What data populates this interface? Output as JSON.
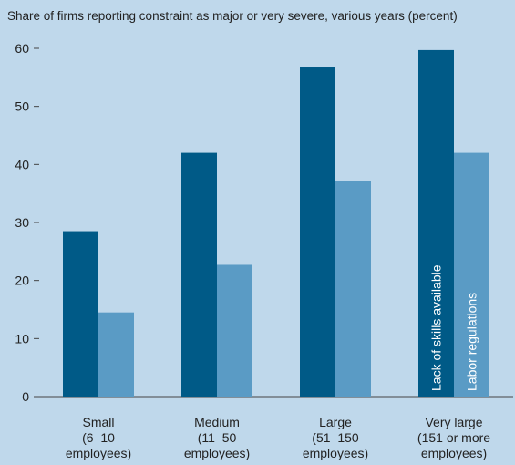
{
  "chart_data": {
    "type": "bar",
    "title": "Share of firms reporting constraint as major or very severe, various years (percent)",
    "categories": [
      "Small\n(6–10\nemployees)",
      "Medium\n(11–50\nemployees)",
      "Large\n(51–150\nemployees)",
      "Very large\n(151 or more\nemployees)"
    ],
    "series": [
      {
        "name": "Lack of skills available",
        "color": "#005a87",
        "values": [
          28.5,
          42,
          56.7,
          59.7
        ]
      },
      {
        "name": "Labor regulations",
        "color": "#5a9bc5",
        "values": [
          14.5,
          22.7,
          37.2,
          42
        ]
      }
    ],
    "ylim": [
      0,
      60
    ],
    "yticks": [
      0,
      10,
      20,
      30,
      40,
      50,
      60
    ]
  }
}
